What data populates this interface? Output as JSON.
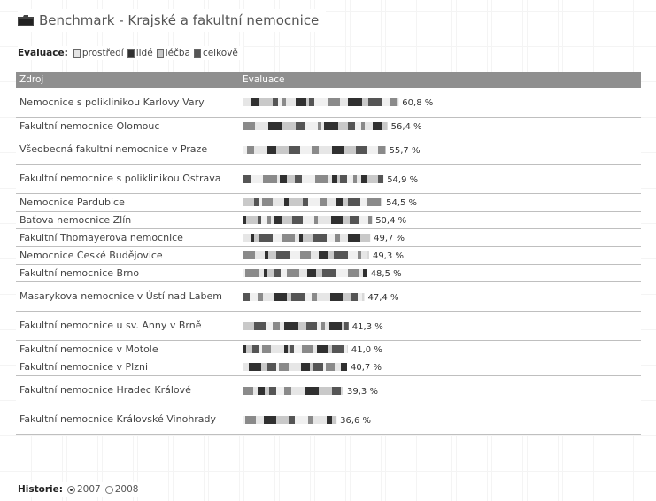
{
  "page": {
    "title": "Benchmark - Krajské a fakultní nemocnice",
    "evaluation_label": "Evaluace:",
    "history_label": "Historie:"
  },
  "legend": [
    {
      "label": "prostředí",
      "color": "#e5e5e5"
    },
    {
      "label": "lidé",
      "color": "#303030"
    },
    {
      "label": "léčba",
      "color": "#c8c8c8"
    },
    {
      "label": "celkově",
      "color": "#555555"
    }
  ],
  "history_options": [
    {
      "label": "2007",
      "selected": true
    },
    {
      "label": "2008",
      "selected": false
    }
  ],
  "chart_data": {
    "type": "bar",
    "orientation": "horizontal",
    "columns": [
      "Zdroj",
      "Evaluace"
    ],
    "unit": "%",
    "categories": [
      "Nemocnice s poliklinikou Karlovy Vary",
      "Fakultní nemocnice Olomouc",
      "Všeobecná fakultní nemocnice v Praze",
      "Fakultní nemocnice s poliklinikou Ostrava",
      "Nemocnice Pardubice",
      "Baťova nemocnice Zlín",
      "Fakultní Thomayerova nemocnice",
      "Nemocnice České Budějovice",
      "Fakultní nemocnice Brno",
      "Masarykova nemocnice v Ústí nad Labem",
      "Fakultní nemocnice u sv. Anny v Brně",
      "Fakultní nemocnice v Motole",
      "Fakultní nemocnice v Plzni",
      "Fakultní nemocnice Hradec Králové",
      "Fakultní nemocnice Královské Vinohrady"
    ],
    "values": [
      60.8,
      56.4,
      55.7,
      54.9,
      54.5,
      50.4,
      49.7,
      49.3,
      48.5,
      47.4,
      41.3,
      41.0,
      40.7,
      39.3,
      36.6
    ],
    "value_labels": [
      "60,8 %",
      "56,4 %",
      "55,7 %",
      "54,9 %",
      "54,5 %",
      "50,4 %",
      "49,7 %",
      "49,3 %",
      "48,5 %",
      "47,4 %",
      "41,3 %",
      "41,0 %",
      "40,7 %",
      "39,3 %",
      "36,6 %"
    ],
    "xlim": [
      0,
      100
    ]
  }
}
